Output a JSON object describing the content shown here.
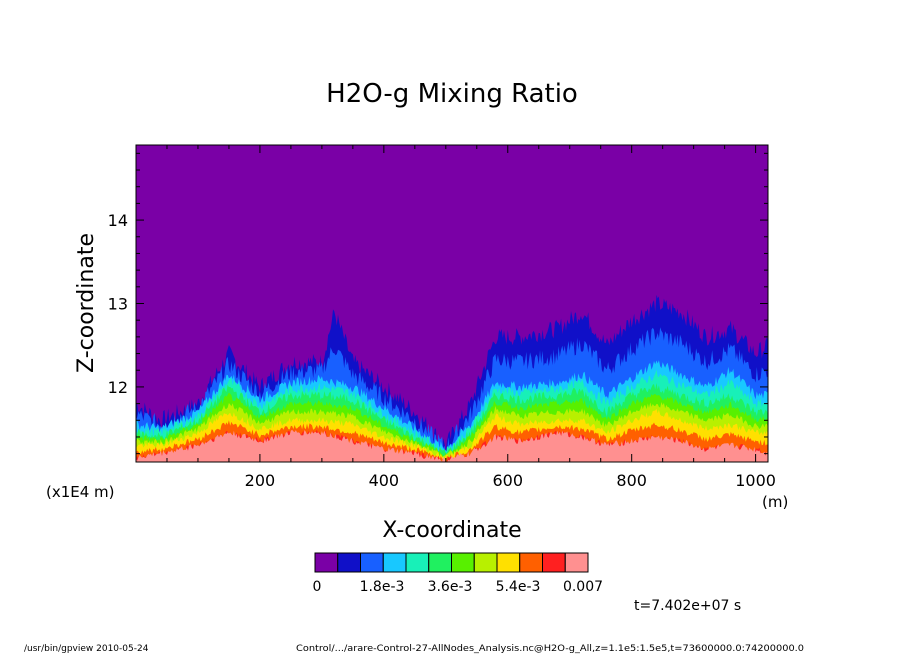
{
  "chart_data": {
    "type": "heatmap",
    "title": "H2O-g Mixing Ratio",
    "xlabel": "X-coordinate",
    "ylabel": "Z-coordinate",
    "xlim": [
      0,
      1020
    ],
    "ylim": [
      11.1,
      14.9
    ],
    "x_ticks": [
      200,
      400,
      600,
      800,
      1000
    ],
    "y_ticks": [
      12,
      13,
      14
    ],
    "x_unit": "(m)",
    "y_scale_note": "(x1E4 m)",
    "colorbar": {
      "colors": [
        "#7a00a6",
        "#1010c8",
        "#1860ff",
        "#18c8ff",
        "#18f0b8",
        "#20f060",
        "#58f000",
        "#b8f000",
        "#ffe000",
        "#ff6000",
        "#ff2020",
        "#ff9090"
      ],
      "ticks": [
        "0",
        "1.8e-3",
        "3.6e-3",
        "5.4e-3",
        "0.007"
      ]
    },
    "level_boundaries": [
      {
        "level": 1,
        "x": [
          0,
          40,
          100,
          150,
          200,
          250,
          300,
          320,
          350,
          400,
          450,
          500,
          540,
          580,
          620,
          680,
          720,
          760,
          800,
          840,
          880,
          920,
          960,
          1000,
          1020
        ],
        "z": [
          11.8,
          11.6,
          11.8,
          12.4,
          12.0,
          12.3,
          12.3,
          12.9,
          12.3,
          12.0,
          11.7,
          11.3,
          11.8,
          12.6,
          12.6,
          12.7,
          12.9,
          12.5,
          12.8,
          13.0,
          12.9,
          12.6,
          12.7,
          12.4,
          12.5
        ]
      },
      {
        "level": 3,
        "x": [
          0,
          40,
          100,
          150,
          200,
          250,
          300,
          350,
          400,
          450,
          500,
          540,
          580,
          620,
          680,
          720,
          760,
          800,
          840,
          880,
          920,
          960,
          1000,
          1020
        ],
        "z": [
          11.55,
          11.5,
          11.7,
          12.15,
          11.85,
          12.05,
          12.1,
          12.0,
          11.75,
          11.5,
          11.25,
          11.55,
          12.05,
          12.0,
          12.05,
          12.15,
          11.9,
          12.1,
          12.3,
          12.15,
          12.0,
          12.2,
          11.9,
          11.9
        ]
      },
      {
        "level": 5,
        "x": [
          0,
          40,
          100,
          150,
          200,
          250,
          300,
          350,
          400,
          450,
          500,
          540,
          580,
          620,
          680,
          720,
          760,
          800,
          840,
          880,
          920,
          960,
          1000,
          1020
        ],
        "z": [
          11.45,
          11.4,
          11.6,
          12.0,
          11.7,
          11.9,
          11.9,
          11.85,
          11.6,
          11.4,
          11.2,
          11.45,
          11.9,
          11.85,
          11.9,
          11.95,
          11.7,
          11.9,
          12.0,
          11.9,
          11.8,
          11.9,
          11.7,
          11.7
        ]
      },
      {
        "level": 8,
        "x": [
          0,
          40,
          100,
          150,
          200,
          250,
          300,
          350,
          400,
          450,
          500,
          540,
          580,
          620,
          680,
          720,
          760,
          800,
          840,
          880,
          920,
          960,
          1000,
          1020
        ],
        "z": [
          11.3,
          11.3,
          11.45,
          11.7,
          11.5,
          11.6,
          11.6,
          11.55,
          11.4,
          11.3,
          11.15,
          11.3,
          11.65,
          11.55,
          11.6,
          11.6,
          11.45,
          11.6,
          11.7,
          11.6,
          11.5,
          11.55,
          11.45,
          11.45
        ]
      },
      {
        "level": 10,
        "x": [
          0,
          40,
          100,
          150,
          200,
          250,
          300,
          350,
          400,
          450,
          500,
          540,
          580,
          620,
          680,
          720,
          760,
          800,
          840,
          880,
          920,
          960,
          1000,
          1020
        ],
        "z": [
          11.15,
          11.2,
          11.3,
          11.45,
          11.35,
          11.45,
          11.45,
          11.35,
          11.25,
          11.2,
          11.12,
          11.2,
          11.4,
          11.35,
          11.45,
          11.4,
          11.3,
          11.35,
          11.4,
          11.35,
          11.25,
          11.3,
          11.25,
          11.2
        ]
      }
    ]
  },
  "annotations": {
    "time": "t=7.402e+07 s",
    "footer_left": "/usr/bin/gpview   2010-05-24",
    "footer_right": "Control/.../arare-Control-27-AllNodes_Analysis.nc@H2O-g_All,z=1.1e5:1.5e5,t=73600000.0:74200000.0"
  }
}
